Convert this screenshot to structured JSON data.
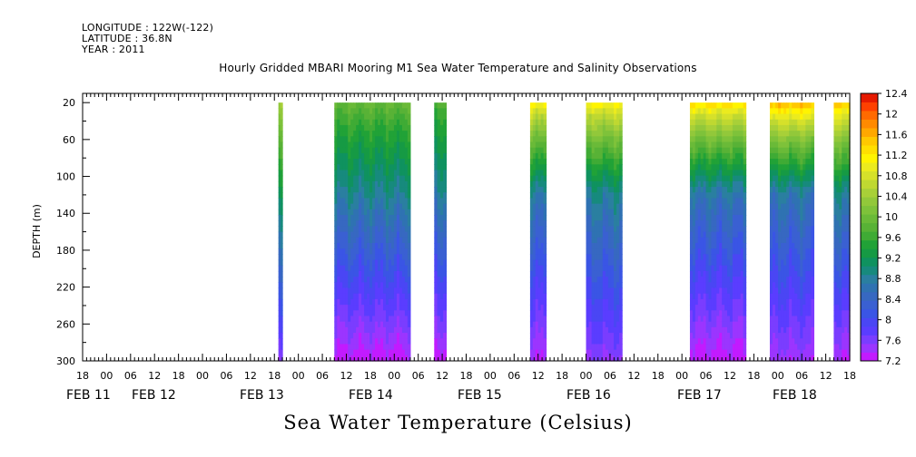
{
  "header": {
    "longitude": "LONGITUDE : 122W(-122)",
    "latitude": "LATITUDE : 36.8N",
    "year": "YEAR : 2011"
  },
  "chart_data": {
    "type": "heatmap",
    "title": "Hourly Gridded MBARI Mooring M1 Sea Water Temperature and Salinity Observations",
    "colorbar_label": "Sea Water Temperature (Celsius)",
    "ylabel": "DEPTH (m)",
    "y_reversed": true,
    "ylim": [
      300,
      10
    ],
    "y_ticks": [
      20,
      60,
      100,
      140,
      180,
      220,
      260,
      300
    ],
    "x_range_hours": [
      "2011-02-10 18:00",
      "2011-02-18 18:00"
    ],
    "x_hour_ticks": [
      "18",
      "00",
      "06",
      "12",
      "18",
      "00",
      "06",
      "12",
      "18",
      "00",
      "06",
      "12",
      "18",
      "00",
      "06",
      "12",
      "18",
      "00",
      "06",
      "12",
      "18",
      "00",
      "06",
      "12",
      "18",
      "00",
      "06",
      "12",
      "18",
      "00",
      "06",
      "12",
      "18"
    ],
    "x_date_labels": [
      "FEB 11",
      "FEB 12",
      "FEB 13",
      "FEB 14",
      "FEB 15",
      "FEB 16",
      "FEB 17",
      "FEB 18"
    ],
    "data_segments": [
      {
        "start": "2011-02-12 19:00",
        "end": "2011-02-12 20:00",
        "t_top": 11.0,
        "t_mid": 9.5,
        "t_bottom": 7.6
      },
      {
        "start": "2011-02-13 09:00",
        "end": "2011-02-14 04:00",
        "t_top": 10.4,
        "t_mid": 9.2,
        "t_bottom": 7.3
      },
      {
        "start": "2011-02-14 10:00",
        "end": "2011-02-14 13:00",
        "t_top": 10.2,
        "t_mid": 9.1,
        "t_bottom": 7.3
      },
      {
        "start": "2011-02-15 10:00",
        "end": "2011-02-15 14:00",
        "t_top": 11.8,
        "t_mid": 9.1,
        "t_bottom": 7.4
      },
      {
        "start": "2011-02-16 00:00",
        "end": "2011-02-16 09:00",
        "t_top": 11.8,
        "t_mid": 9.2,
        "t_bottom": 7.6
      },
      {
        "start": "2011-02-17 02:00",
        "end": "2011-02-17 16:00",
        "t_top": 12.0,
        "t_mid": 9.0,
        "t_bottom": 7.3
      },
      {
        "start": "2011-02-17 22:00",
        "end": "2011-02-18 09:00",
        "t_top": 12.3,
        "t_mid": 9.0,
        "t_bottom": 7.5
      },
      {
        "start": "2011-02-18 14:00",
        "end": "2011-02-18 18:00",
        "t_top": 12.2,
        "t_mid": 9.2,
        "t_bottom": 7.4
      }
    ],
    "colorbar": {
      "min": 7.2,
      "max": 12.4,
      "step": 0.2,
      "tick_labels": [
        "12.4",
        "12",
        "11.6",
        "11.2",
        "10.8",
        "10.4",
        "10",
        "9.6",
        "9.2",
        "8.8",
        "8.4",
        "8",
        "7.6",
        "7.2"
      ],
      "colors": [
        "#c21bff",
        "#9b35ff",
        "#7a3dff",
        "#5a3dff",
        "#4a46f4",
        "#3a55e5",
        "#3a60d2",
        "#3768c1",
        "#2f72b2",
        "#2a7fa0",
        "#178a7d",
        "#0f925f",
        "#169a44",
        "#21a237",
        "#3fab35",
        "#58b236",
        "#6aba38",
        "#7ec23a",
        "#92c83a",
        "#a8d038",
        "#bfd831",
        "#d6e12a",
        "#ebeb1e",
        "#fff400",
        "#ffdf00",
        "#ffc800",
        "#ffa800",
        "#ff8a00",
        "#ff6a00",
        "#ff4000",
        "#e61a00"
      ]
    }
  }
}
